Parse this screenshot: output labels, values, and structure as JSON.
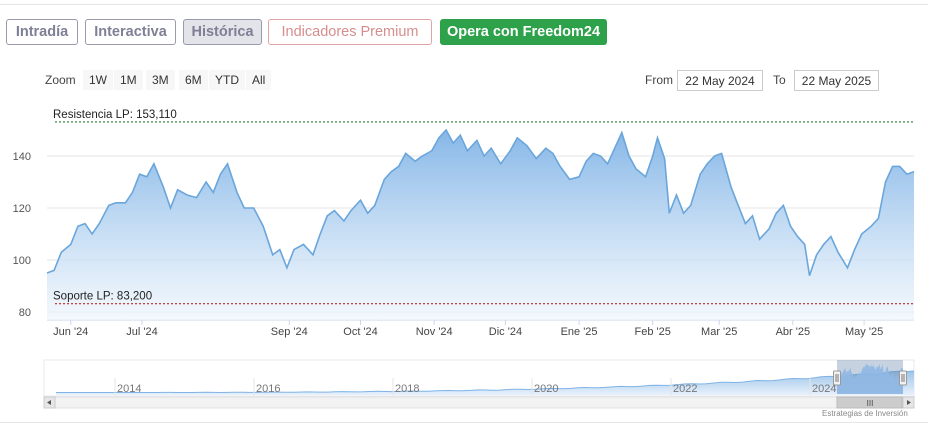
{
  "tabs": {
    "intradia": "Intradía",
    "interactiva": "Interactiva",
    "historica": "Histórica",
    "premium": "Indicadores Premium",
    "freedom": "Opera con Freedom24"
  },
  "zoom": {
    "label": "Zoom",
    "buttons": [
      "1W",
      "1M",
      "3M",
      "6M",
      "YTD",
      "All"
    ]
  },
  "range": {
    "from_label": "From",
    "from_value": "22 May 2024",
    "to_label": "To",
    "to_value": "22 May 2025"
  },
  "colors": {
    "line": "#6aa6db",
    "area_top": "#7fb3e6",
    "area_bottom": "#eef5fc",
    "resistance": "#2e7d32",
    "support": "#c62828",
    "freedom_button": "#2da24b"
  },
  "chart_data": {
    "type": "area",
    "title": "",
    "xlabel": "",
    "ylabel": "",
    "ylim": [
      80,
      155
    ],
    "y_ticks": [
      80,
      100,
      120,
      140
    ],
    "x_tick_labels": [
      "Jun '24",
      "Jul '24",
      "Sep '24",
      "Oct '24",
      "Nov '24",
      "Dic '24",
      "Ene '25",
      "Feb '25",
      "Mar '25",
      "Abr '25",
      "May '25"
    ],
    "x_tick_dates": [
      "2024-06-01",
      "2024-07-01",
      "2024-09-01",
      "2024-10-01",
      "2024-11-01",
      "2024-12-01",
      "2025-01-01",
      "2025-02-01",
      "2025-03-01",
      "2025-04-01",
      "2025-05-01"
    ],
    "x_range": [
      "2024-05-22",
      "2025-05-22"
    ],
    "grid": true,
    "series": [
      {
        "values": [
          [
            "2024-05-22",
            95
          ],
          [
            "2024-05-25",
            96
          ],
          [
            "2024-05-28",
            103
          ],
          [
            "2024-06-01",
            106
          ],
          [
            "2024-06-04",
            113
          ],
          [
            "2024-06-07",
            114
          ],
          [
            "2024-06-10",
            110
          ],
          [
            "2024-06-13",
            114
          ],
          [
            "2024-06-17",
            121
          ],
          [
            "2024-06-20",
            122
          ],
          [
            "2024-06-24",
            122
          ],
          [
            "2024-06-27",
            126
          ],
          [
            "2024-06-30",
            133
          ],
          [
            "2024-07-03",
            132
          ],
          [
            "2024-07-06",
            137
          ],
          [
            "2024-07-10",
            128
          ],
          [
            "2024-07-13",
            120
          ],
          [
            "2024-07-16",
            127
          ],
          [
            "2024-07-20",
            125
          ],
          [
            "2024-07-24",
            124
          ],
          [
            "2024-07-28",
            130
          ],
          [
            "2024-07-31",
            126
          ],
          [
            "2024-08-03",
            133
          ],
          [
            "2024-08-06",
            137
          ],
          [
            "2024-08-10",
            126
          ],
          [
            "2024-08-13",
            120
          ],
          [
            "2024-08-17",
            120
          ],
          [
            "2024-08-21",
            113
          ],
          [
            "2024-08-25",
            102
          ],
          [
            "2024-08-28",
            104
          ],
          [
            "2024-08-31",
            97
          ],
          [
            "2024-09-03",
            104
          ],
          [
            "2024-09-07",
            106
          ],
          [
            "2024-09-11",
            102
          ],
          [
            "2024-09-14",
            110
          ],
          [
            "2024-09-17",
            117
          ],
          [
            "2024-09-20",
            119
          ],
          [
            "2024-09-24",
            115
          ],
          [
            "2024-09-27",
            119
          ],
          [
            "2024-10-01",
            123
          ],
          [
            "2024-10-04",
            118
          ],
          [
            "2024-10-07",
            121
          ],
          [
            "2024-10-11",
            131
          ],
          [
            "2024-10-14",
            134
          ],
          [
            "2024-10-17",
            136
          ],
          [
            "2024-10-20",
            141
          ],
          [
            "2024-10-24",
            138
          ],
          [
            "2024-10-27",
            140
          ],
          [
            "2024-10-31",
            142
          ],
          [
            "2024-11-03",
            147
          ],
          [
            "2024-11-06",
            150
          ],
          [
            "2024-11-09",
            145
          ],
          [
            "2024-11-12",
            148
          ],
          [
            "2024-11-15",
            142
          ],
          [
            "2024-11-19",
            146
          ],
          [
            "2024-11-22",
            140
          ],
          [
            "2024-11-25",
            143
          ],
          [
            "2024-11-29",
            137
          ],
          [
            "2024-12-03",
            142
          ],
          [
            "2024-12-06",
            147
          ],
          [
            "2024-12-10",
            144
          ],
          [
            "2024-12-14",
            139
          ],
          [
            "2024-12-18",
            143
          ],
          [
            "2024-12-21",
            141
          ],
          [
            "2024-12-24",
            136
          ],
          [
            "2024-12-28",
            131
          ],
          [
            "2025-01-01",
            132
          ],
          [
            "2025-01-04",
            138
          ],
          [
            "2025-01-07",
            141
          ],
          [
            "2025-01-10",
            140
          ],
          [
            "2025-01-13",
            137
          ],
          [
            "2025-01-16",
            143
          ],
          [
            "2025-01-19",
            149
          ],
          [
            "2025-01-22",
            140
          ],
          [
            "2025-01-25",
            135
          ],
          [
            "2025-01-29",
            132
          ],
          [
            "2025-02-01",
            140
          ],
          [
            "2025-02-03",
            147
          ],
          [
            "2025-02-06",
            139
          ],
          [
            "2025-02-08",
            118
          ],
          [
            "2025-02-11",
            125
          ],
          [
            "2025-02-14",
            118
          ],
          [
            "2025-02-17",
            121
          ],
          [
            "2025-02-21",
            133
          ],
          [
            "2025-02-24",
            137
          ],
          [
            "2025-02-27",
            140
          ],
          [
            "2025-03-02",
            141
          ],
          [
            "2025-03-06",
            128
          ],
          [
            "2025-03-09",
            121
          ],
          [
            "2025-03-12",
            114
          ],
          [
            "2025-03-15",
            117
          ],
          [
            "2025-03-18",
            108
          ],
          [
            "2025-03-22",
            112
          ],
          [
            "2025-03-25",
            118
          ],
          [
            "2025-03-28",
            121
          ],
          [
            "2025-03-31",
            113
          ],
          [
            "2025-04-03",
            109
          ],
          [
            "2025-04-06",
            106
          ],
          [
            "2025-04-08",
            94
          ],
          [
            "2025-04-11",
            102
          ],
          [
            "2025-04-14",
            106
          ],
          [
            "2025-04-17",
            109
          ],
          [
            "2025-04-20",
            103
          ],
          [
            "2025-04-24",
            97
          ],
          [
            "2025-04-27",
            104
          ],
          [
            "2025-04-30",
            110
          ],
          [
            "2025-05-04",
            113
          ],
          [
            "2025-05-07",
            116
          ],
          [
            "2025-05-10",
            130
          ],
          [
            "2025-05-13",
            136
          ],
          [
            "2025-05-16",
            136
          ],
          [
            "2025-05-19",
            133
          ],
          [
            "2025-05-22",
            134
          ]
        ]
      }
    ],
    "reference_lines": [
      {
        "label": "Resistencia LP: 153,110",
        "value": 153.11,
        "style": "dotted",
        "color": "#2e7d32"
      },
      {
        "label": "Soporte LP: 83,200",
        "value": 83.2,
        "style": "dotted",
        "color": "#c62828"
      }
    ],
    "navigator": {
      "year_labels": [
        "2014",
        "2016",
        "2018",
        "2020",
        "2022",
        "2024"
      ],
      "scrollbar_grip": "III"
    }
  },
  "credits": "Estrategias de Inversión"
}
